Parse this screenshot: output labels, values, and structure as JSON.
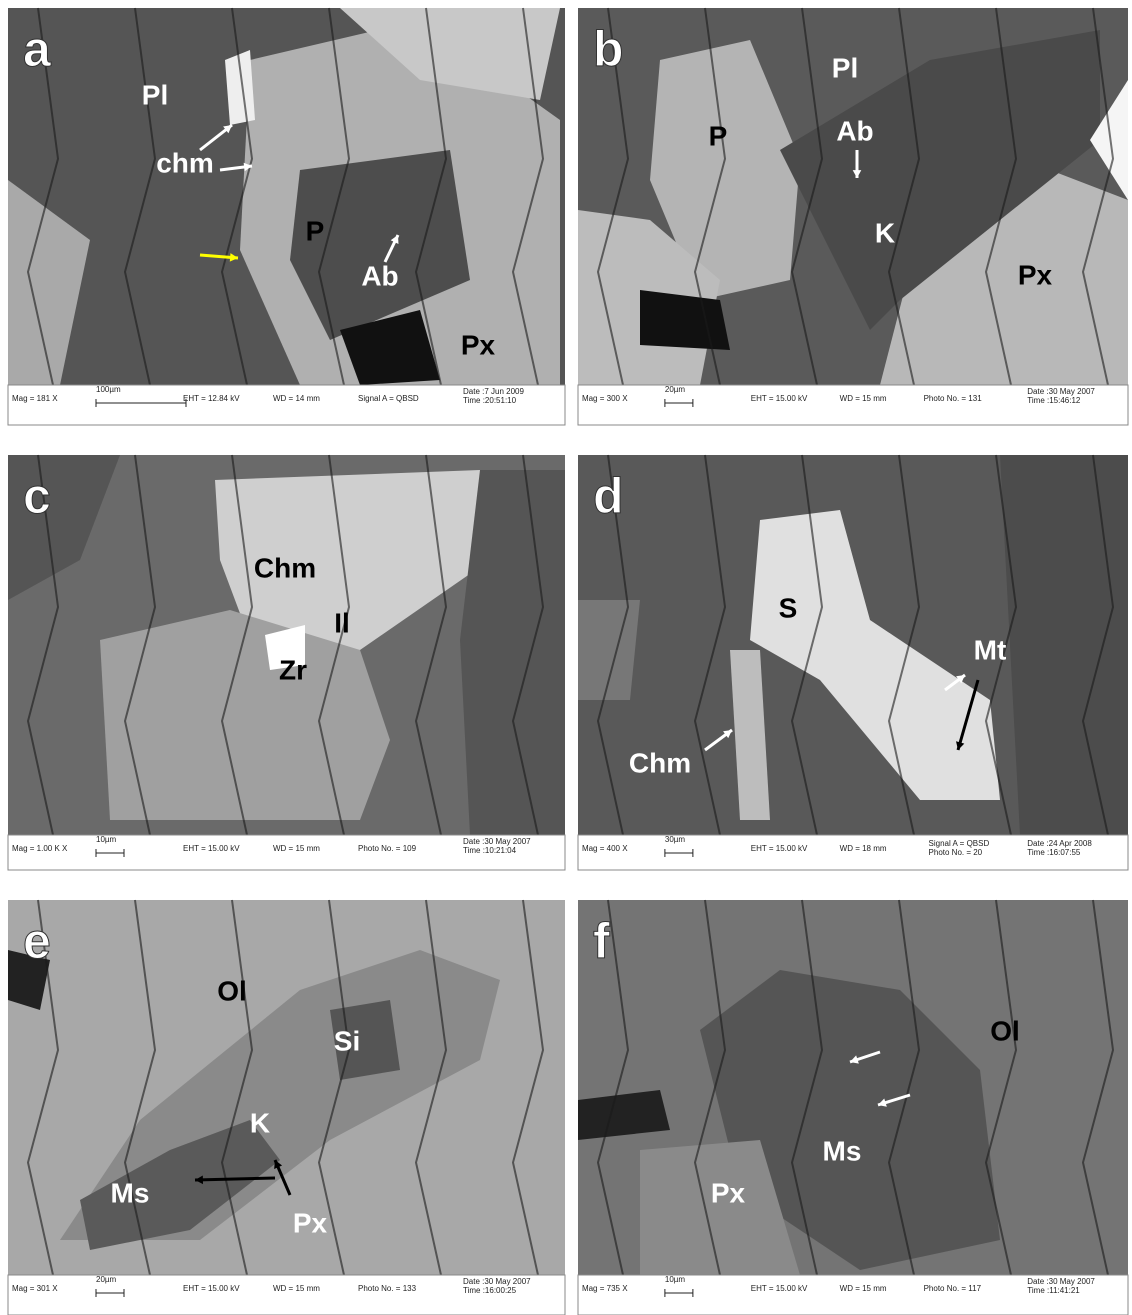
{
  "panels": [
    {
      "letter": "a",
      "labels": [
        "Pl",
        "chm",
        "P",
        "Ab",
        "Px"
      ],
      "info": [
        "Mag =   181 X",
        "100µm",
        "EHT = 12.84 kV",
        "WD =   14 mm",
        "Signal A = QBSD",
        "Date :7 Jun 2009",
        "Time :20:51:10"
      ]
    },
    {
      "letter": "b",
      "labels": [
        "Pl",
        "P",
        "Ab",
        "K",
        "Px"
      ],
      "info": [
        "Mag =   300 X",
        "20µm",
        "EHT = 15.00 kV",
        "WD =   15 mm",
        "Photo No. = 131",
        "Date :30 May 2007",
        "Time :15:46:12"
      ]
    },
    {
      "letter": "c",
      "labels": [
        "Chm",
        "Il",
        "Zr"
      ],
      "info": [
        "Mag =  1.00 K X",
        "10µm",
        "EHT = 15.00 kV",
        "WD =   15 mm",
        "Photo No. = 109",
        "Date :30 May 2007",
        "Time :10:21:04"
      ]
    },
    {
      "letter": "d",
      "labels": [
        "S",
        "Mt",
        "Chm"
      ],
      "info": [
        "Mag =   400 X",
        "30µm",
        "EHT = 15.00 kV",
        "WD =   18 mm",
        "Signal A = QBSD",
        "Photo No. = 20",
        "Date :24 Apr 2008",
        "Time :16:07:55"
      ]
    },
    {
      "letter": "e",
      "labels": [
        "Ol",
        "Si",
        "K",
        "Ms",
        "Px"
      ],
      "info": [
        "Mag =   301 X",
        "20µm",
        "EHT = 15.00 kV",
        "WD =   15 mm",
        "Photo No. = 133",
        "Date :30 May 2007",
        "Time :16:00:25"
      ]
    },
    {
      "letter": "f",
      "labels": [
        "Ol",
        "Ms",
        "Px"
      ],
      "info": [
        "Mag =   735 X",
        "10µm",
        "EHT = 15.00 kV",
        "WD =   15 mm",
        "Photo No. = 117",
        "Date :30 May 2007",
        "Time :11:41:21"
      ]
    }
  ]
}
